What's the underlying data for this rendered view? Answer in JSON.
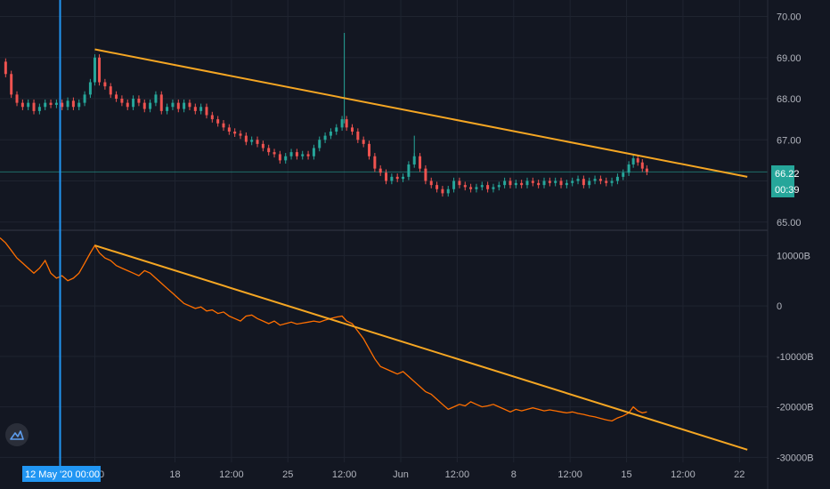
{
  "colors": {
    "background": "#131722",
    "grid": "#1f2430",
    "trendline": "#f5a623",
    "candle_up": "#26a69a",
    "candle_down": "#ef5350",
    "indicator": "#ff6f00",
    "crosshair": "#2196f3",
    "badge": "#26a69a",
    "axis_text": "#b2b5be"
  },
  "price_badge": {
    "value": "66.22",
    "countdown": "00:39"
  },
  "crosshair_label": "12 May '20   00:00",
  "logo_icon": "tradingview-logo-icon",
  "chart_data": [
    {
      "type": "candlestick",
      "title": "",
      "ylim": [
        64.8,
        70.4
      ],
      "y_ticks": [
        "70.00",
        "69.00",
        "68.00",
        "67.00",
        "65.00"
      ],
      "y_tick_values": [
        70,
        69,
        68,
        67,
        65
      ],
      "x_ticks": [
        "2:00",
        "18",
        "12:00",
        "25",
        "12:00",
        "Jun",
        "12:00",
        "8",
        "12:00",
        "15",
        "12:00",
        "22"
      ],
      "x_tick_index": [
        0.29,
        1.0,
        1.5,
        2.0,
        2.5,
        3.0,
        3.5,
        4.0,
        4.5,
        5.0,
        5.5,
        6.0
      ],
      "trendline": [
        {
          "x": 0.29,
          "y": 69.2
        },
        {
          "x": 6.07,
          "y": 66.1
        }
      ],
      "points": [
        {
          "x": -0.55,
          "y": 68.9
        },
        {
          "x": -0.5,
          "y": 68.6
        },
        {
          "x": -0.45,
          "y": 68.1
        },
        {
          "x": -0.4,
          "y": 67.9
        },
        {
          "x": -0.35,
          "y": 67.8
        },
        {
          "x": -0.3,
          "y": 67.9
        },
        {
          "x": -0.25,
          "y": 67.7
        },
        {
          "x": -0.2,
          "y": 67.8
        },
        {
          "x": -0.15,
          "y": 67.9
        },
        {
          "x": -0.1,
          "y": 67.85
        },
        {
          "x": -0.05,
          "y": 67.9
        },
        {
          "x": 0.0,
          "y": 67.8
        },
        {
          "x": 0.05,
          "y": 67.95
        },
        {
          "x": 0.1,
          "y": 67.8
        },
        {
          "x": 0.15,
          "y": 67.9
        },
        {
          "x": 0.2,
          "y": 68.1
        },
        {
          "x": 0.25,
          "y": 68.4
        },
        {
          "x": 0.29,
          "y": 69.0
        },
        {
          "x": 0.33,
          "y": 68.4
        },
        {
          "x": 0.38,
          "y": 68.3
        },
        {
          "x": 0.43,
          "y": 68.1
        },
        {
          "x": 0.48,
          "y": 68.0
        },
        {
          "x": 0.53,
          "y": 67.9
        },
        {
          "x": 0.58,
          "y": 67.8
        },
        {
          "x": 0.63,
          "y": 68.0
        },
        {
          "x": 0.68,
          "y": 67.9
        },
        {
          "x": 0.73,
          "y": 67.75
        },
        {
          "x": 0.78,
          "y": 67.9
        },
        {
          "x": 0.83,
          "y": 68.1
        },
        {
          "x": 0.88,
          "y": 67.7
        },
        {
          "x": 0.93,
          "y": 67.8
        },
        {
          "x": 0.98,
          "y": 67.9
        },
        {
          "x": 1.03,
          "y": 67.75
        },
        {
          "x": 1.08,
          "y": 67.9
        },
        {
          "x": 1.13,
          "y": 67.8
        },
        {
          "x": 1.18,
          "y": 67.7
        },
        {
          "x": 1.23,
          "y": 67.8
        },
        {
          "x": 1.28,
          "y": 67.6
        },
        {
          "x": 1.33,
          "y": 67.5
        },
        {
          "x": 1.38,
          "y": 67.4
        },
        {
          "x": 1.43,
          "y": 67.3
        },
        {
          "x": 1.48,
          "y": 67.2
        },
        {
          "x": 1.53,
          "y": 67.15
        },
        {
          "x": 1.58,
          "y": 67.1
        },
        {
          "x": 1.63,
          "y": 66.95
        },
        {
          "x": 1.68,
          "y": 67.0
        },
        {
          "x": 1.73,
          "y": 66.9
        },
        {
          "x": 1.78,
          "y": 66.8
        },
        {
          "x": 1.83,
          "y": 66.7
        },
        {
          "x": 1.88,
          "y": 66.65
        },
        {
          "x": 1.93,
          "y": 66.5
        },
        {
          "x": 1.98,
          "y": 66.6
        },
        {
          "x": 2.03,
          "y": 66.7
        },
        {
          "x": 2.08,
          "y": 66.6
        },
        {
          "x": 2.13,
          "y": 66.65
        },
        {
          "x": 2.18,
          "y": 66.6
        },
        {
          "x": 2.23,
          "y": 66.8
        },
        {
          "x": 2.28,
          "y": 67.0
        },
        {
          "x": 2.33,
          "y": 67.1
        },
        {
          "x": 2.38,
          "y": 67.2
        },
        {
          "x": 2.43,
          "y": 67.3
        },
        {
          "x": 2.48,
          "y": 67.5
        },
        {
          "x": 2.52,
          "y": 67.3
        },
        {
          "x": 2.57,
          "y": 67.2
        },
        {
          "x": 2.62,
          "y": 67.0
        },
        {
          "x": 2.67,
          "y": 66.9
        },
        {
          "x": 2.72,
          "y": 66.6
        },
        {
          "x": 2.77,
          "y": 66.3
        },
        {
          "x": 2.82,
          "y": 66.2
        },
        {
          "x": 2.87,
          "y": 66.0
        },
        {
          "x": 2.92,
          "y": 66.1
        },
        {
          "x": 2.97,
          "y": 66.05
        },
        {
          "x": 3.02,
          "y": 66.1
        },
        {
          "x": 3.07,
          "y": 66.4
        },
        {
          "x": 3.12,
          "y": 66.6
        },
        {
          "x": 3.17,
          "y": 66.3
        },
        {
          "x": 3.22,
          "y": 66.0
        },
        {
          "x": 3.27,
          "y": 65.9
        },
        {
          "x": 3.32,
          "y": 65.8
        },
        {
          "x": 3.37,
          "y": 65.7
        },
        {
          "x": 3.42,
          "y": 65.8
        },
        {
          "x": 3.47,
          "y": 66.0
        },
        {
          "x": 3.52,
          "y": 65.9
        },
        {
          "x": 3.57,
          "y": 65.85
        },
        {
          "x": 3.62,
          "y": 65.8
        },
        {
          "x": 3.67,
          "y": 65.85
        },
        {
          "x": 3.72,
          "y": 65.9
        },
        {
          "x": 3.77,
          "y": 65.8
        },
        {
          "x": 3.82,
          "y": 65.85
        },
        {
          "x": 3.87,
          "y": 65.9
        },
        {
          "x": 3.92,
          "y": 66.0
        },
        {
          "x": 3.97,
          "y": 65.9
        },
        {
          "x": 4.02,
          "y": 65.95
        },
        {
          "x": 4.07,
          "y": 65.9
        },
        {
          "x": 4.12,
          "y": 66.0
        },
        {
          "x": 4.17,
          "y": 65.95
        },
        {
          "x": 4.22,
          "y": 65.9
        },
        {
          "x": 4.27,
          "y": 66.0
        },
        {
          "x": 4.32,
          "y": 65.95
        },
        {
          "x": 4.37,
          "y": 66.0
        },
        {
          "x": 4.42,
          "y": 65.9
        },
        {
          "x": 4.47,
          "y": 65.95
        },
        {
          "x": 4.52,
          "y": 66.0
        },
        {
          "x": 4.57,
          "y": 66.05
        },
        {
          "x": 4.62,
          "y": 65.9
        },
        {
          "x": 4.67,
          "y": 66.0
        },
        {
          "x": 4.72,
          "y": 66.05
        },
        {
          "x": 4.77,
          "y": 66.0
        },
        {
          "x": 4.82,
          "y": 65.95
        },
        {
          "x": 4.87,
          "y": 66.0
        },
        {
          "x": 4.92,
          "y": 66.1
        },
        {
          "x": 4.97,
          "y": 66.2
        },
        {
          "x": 5.02,
          "y": 66.4
        },
        {
          "x": 5.06,
          "y": 66.55
        },
        {
          "x": 5.1,
          "y": 66.45
        },
        {
          "x": 5.14,
          "y": 66.3
        },
        {
          "x": 5.18,
          "y": 66.22
        }
      ]
    },
    {
      "type": "line",
      "title": "",
      "ylim": [
        -31000,
        15000
      ],
      "y_ticks": [
        "10000B",
        "0",
        "-10000B",
        "-20000B",
        "-30000B"
      ],
      "y_tick_values": [
        10000,
        0,
        -10000,
        -20000,
        -30000
      ],
      "trendline": [
        {
          "x": 0.29,
          "y": 12000
        },
        {
          "x": 6.07,
          "y": -28500
        }
      ],
      "points": [
        {
          "x": -0.55,
          "y": 13500
        },
        {
          "x": -0.5,
          "y": 12500
        },
        {
          "x": -0.45,
          "y": 11000
        },
        {
          "x": -0.4,
          "y": 9500
        },
        {
          "x": -0.35,
          "y": 8500
        },
        {
          "x": -0.3,
          "y": 7500
        },
        {
          "x": -0.25,
          "y": 6500
        },
        {
          "x": -0.2,
          "y": 7500
        },
        {
          "x": -0.15,
          "y": 9000
        },
        {
          "x": -0.1,
          "y": 6500
        },
        {
          "x": -0.05,
          "y": 5500
        },
        {
          "x": 0.0,
          "y": 6000
        },
        {
          "x": 0.05,
          "y": 5000
        },
        {
          "x": 0.1,
          "y": 5500
        },
        {
          "x": 0.15,
          "y": 6500
        },
        {
          "x": 0.2,
          "y": 8500
        },
        {
          "x": 0.25,
          "y": 10500
        },
        {
          "x": 0.29,
          "y": 12000
        },
        {
          "x": 0.33,
          "y": 10500
        },
        {
          "x": 0.38,
          "y": 9500
        },
        {
          "x": 0.43,
          "y": 9000
        },
        {
          "x": 0.48,
          "y": 8000
        },
        {
          "x": 0.53,
          "y": 7500
        },
        {
          "x": 0.58,
          "y": 7000
        },
        {
          "x": 0.63,
          "y": 6500
        },
        {
          "x": 0.68,
          "y": 6000
        },
        {
          "x": 0.73,
          "y": 7000
        },
        {
          "x": 0.78,
          "y": 6500
        },
        {
          "x": 0.83,
          "y": 5500
        },
        {
          "x": 0.88,
          "y": 4500
        },
        {
          "x": 0.93,
          "y": 3500
        },
        {
          "x": 0.98,
          "y": 2500
        },
        {
          "x": 1.03,
          "y": 1500
        },
        {
          "x": 1.08,
          "y": 500
        },
        {
          "x": 1.13,
          "y": 0
        },
        {
          "x": 1.18,
          "y": -500
        },
        {
          "x": 1.23,
          "y": -200
        },
        {
          "x": 1.28,
          "y": -1000
        },
        {
          "x": 1.33,
          "y": -800
        },
        {
          "x": 1.38,
          "y": -1500
        },
        {
          "x": 1.43,
          "y": -1200
        },
        {
          "x": 1.48,
          "y": -2000
        },
        {
          "x": 1.53,
          "y": -2500
        },
        {
          "x": 1.58,
          "y": -3000
        },
        {
          "x": 1.63,
          "y": -2000
        },
        {
          "x": 1.68,
          "y": -1800
        },
        {
          "x": 1.73,
          "y": -2500
        },
        {
          "x": 1.78,
          "y": -3000
        },
        {
          "x": 1.83,
          "y": -3500
        },
        {
          "x": 1.88,
          "y": -3000
        },
        {
          "x": 1.93,
          "y": -3800
        },
        {
          "x": 1.98,
          "y": -3500
        },
        {
          "x": 2.03,
          "y": -3200
        },
        {
          "x": 2.08,
          "y": -3600
        },
        {
          "x": 2.13,
          "y": -3400
        },
        {
          "x": 2.18,
          "y": -3200
        },
        {
          "x": 2.23,
          "y": -3000
        },
        {
          "x": 2.28,
          "y": -3200
        },
        {
          "x": 2.33,
          "y": -2800
        },
        {
          "x": 2.38,
          "y": -2500
        },
        {
          "x": 2.43,
          "y": -2200
        },
        {
          "x": 2.48,
          "y": -2000
        },
        {
          "x": 2.52,
          "y": -3000
        },
        {
          "x": 2.57,
          "y": -3500
        },
        {
          "x": 2.62,
          "y": -5000
        },
        {
          "x": 2.67,
          "y": -6500
        },
        {
          "x": 2.72,
          "y": -8500
        },
        {
          "x": 2.77,
          "y": -10500
        },
        {
          "x": 2.82,
          "y": -12000
        },
        {
          "x": 2.87,
          "y": -12500
        },
        {
          "x": 2.92,
          "y": -13000
        },
        {
          "x": 2.97,
          "y": -13500
        },
        {
          "x": 3.02,
          "y": -13000
        },
        {
          "x": 3.07,
          "y": -14000
        },
        {
          "x": 3.12,
          "y": -15000
        },
        {
          "x": 3.17,
          "y": -16000
        },
        {
          "x": 3.22,
          "y": -17000
        },
        {
          "x": 3.27,
          "y": -17500
        },
        {
          "x": 3.32,
          "y": -18500
        },
        {
          "x": 3.37,
          "y": -19500
        },
        {
          "x": 3.42,
          "y": -20500
        },
        {
          "x": 3.47,
          "y": -20000
        },
        {
          "x": 3.52,
          "y": -19500
        },
        {
          "x": 3.57,
          "y": -19800
        },
        {
          "x": 3.62,
          "y": -19000
        },
        {
          "x": 3.67,
          "y": -19500
        },
        {
          "x": 3.72,
          "y": -20000
        },
        {
          "x": 3.77,
          "y": -19800
        },
        {
          "x": 3.82,
          "y": -19500
        },
        {
          "x": 3.87,
          "y": -20000
        },
        {
          "x": 3.92,
          "y": -20500
        },
        {
          "x": 3.97,
          "y": -21000
        },
        {
          "x": 4.02,
          "y": -20500
        },
        {
          "x": 4.07,
          "y": -20800
        },
        {
          "x": 4.12,
          "y": -20500
        },
        {
          "x": 4.17,
          "y": -20200
        },
        {
          "x": 4.22,
          "y": -20500
        },
        {
          "x": 4.27,
          "y": -20800
        },
        {
          "x": 4.32,
          "y": -20600
        },
        {
          "x": 4.37,
          "y": -20800
        },
        {
          "x": 4.42,
          "y": -21000
        },
        {
          "x": 4.47,
          "y": -21200
        },
        {
          "x": 4.52,
          "y": -21000
        },
        {
          "x": 4.57,
          "y": -21300
        },
        {
          "x": 4.62,
          "y": -21500
        },
        {
          "x": 4.67,
          "y": -21800
        },
        {
          "x": 4.72,
          "y": -22000
        },
        {
          "x": 4.77,
          "y": -22300
        },
        {
          "x": 4.82,
          "y": -22600
        },
        {
          "x": 4.87,
          "y": -22800
        },
        {
          "x": 4.92,
          "y": -22200
        },
        {
          "x": 4.97,
          "y": -21800
        },
        {
          "x": 5.02,
          "y": -21200
        },
        {
          "x": 5.06,
          "y": -20000
        },
        {
          "x": 5.1,
          "y": -20800
        },
        {
          "x": 5.14,
          "y": -21200
        },
        {
          "x": 5.18,
          "y": -21000
        }
      ]
    }
  ]
}
